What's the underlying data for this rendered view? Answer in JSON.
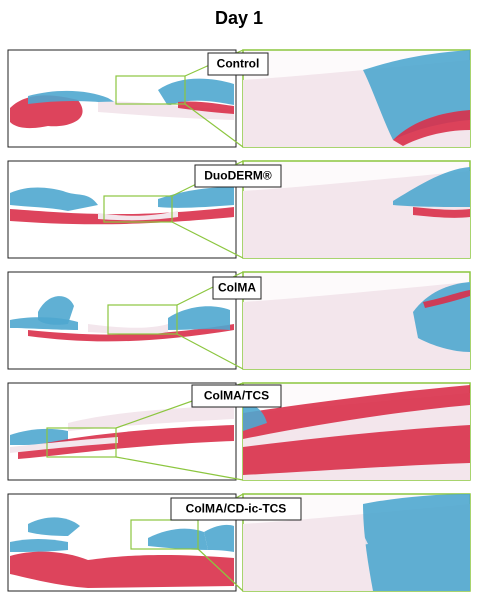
{
  "title": "Day 1",
  "panels": [
    {
      "label": "Control"
    },
    {
      "label": "DuoDERM®"
    },
    {
      "label": "ColMA"
    },
    {
      "label": "ColMA/TCS"
    },
    {
      "label": "ColMA/CD-ic-TCS"
    }
  ]
}
